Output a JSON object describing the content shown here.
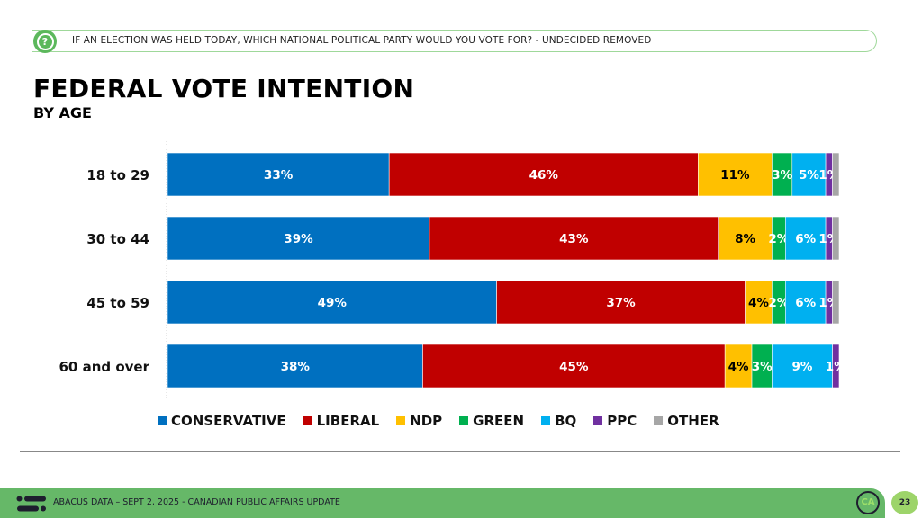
{
  "header": {
    "question_icon": "question-bubble-icon",
    "question": "IF AN ELECTION WAS HELD TODAY, WHICH NATIONAL POLITICAL PARTY WOULD YOU VOTE FOR? - UNDECIDED REMOVED",
    "title": "FEDERAL VOTE INTENTION",
    "subtitle": "BY AGE"
  },
  "footer": {
    "logo_icon": "abacus-logo-icon",
    "text": "ABACUS DATA – SEPT 2, 2025 - CANADIAN PUBLIC AFFAIRS UPDATE",
    "badge_text": "CA",
    "page_number": "23"
  },
  "chart_data": {
    "type": "bar",
    "orientation": "horizontal",
    "stacked": true,
    "title": "FEDERAL VOTE INTENTION",
    "subtitle": "BY AGE",
    "xlabel": "",
    "ylabel": "",
    "xlim": [
      0,
      100
    ],
    "grid": false,
    "legend_position": "bottom",
    "categories": [
      "18 to 29",
      "30 to 44",
      "45 to 59",
      "60 and over"
    ],
    "series": [
      {
        "name": "CONSERVATIVE",
        "color": "#0070c0",
        "label_color": "#ffffff",
        "values": [
          33,
          39,
          49,
          38
        ]
      },
      {
        "name": "LIBERAL",
        "color": "#c00000",
        "label_color": "#ffffff",
        "values": [
          46,
          43,
          37,
          45
        ]
      },
      {
        "name": "NDP",
        "color": "#ffc000",
        "label_color": "#000000",
        "values": [
          11,
          8,
          4,
          4
        ]
      },
      {
        "name": "GREEN",
        "color": "#00b050",
        "label_color": "#ffffff",
        "values": [
          3,
          2,
          2,
          3
        ]
      },
      {
        "name": "BQ",
        "color": "#00b0f0",
        "label_color": "#ffffff",
        "values": [
          5,
          6,
          6,
          9
        ]
      },
      {
        "name": "PPC",
        "color": "#7030a0",
        "label_color": "#ffffff",
        "values": [
          1,
          1,
          1,
          1
        ]
      },
      {
        "name": "OTHER",
        "color": "#a6a6a6",
        "label_color": "#ffffff",
        "values": [
          1,
          1,
          1,
          0
        ],
        "labels_shown": false
      }
    ]
  }
}
